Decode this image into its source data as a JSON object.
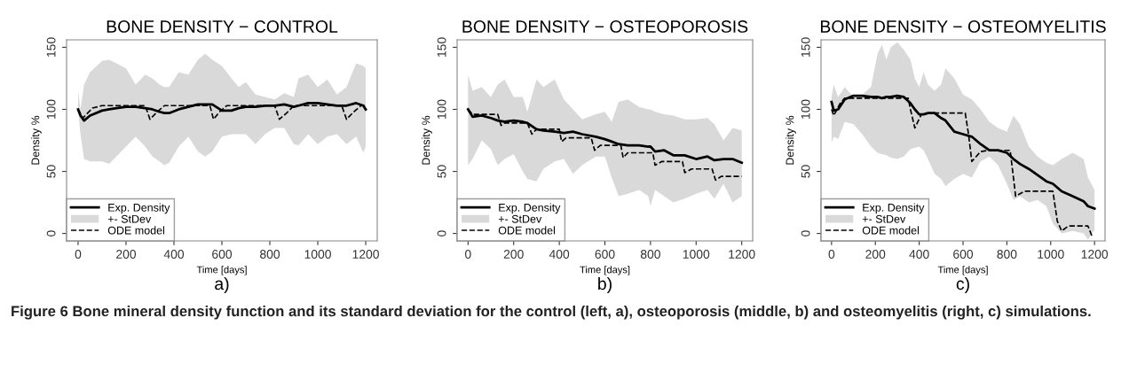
{
  "chart_data": [
    {
      "type": "line",
      "title": "BONE DENSITY − CONTROL",
      "xlabel": "Time [days]",
      "ylabel": "Density %",
      "xlim": [
        -48,
        1248
      ],
      "ylim": [
        -6,
        156
      ],
      "xticks": [
        0,
        200,
        400,
        600,
        800,
        1000,
        1200
      ],
      "yticks": [
        0,
        50,
        100,
        150
      ],
      "grid": false,
      "legend": "bottom left",
      "annotations": [
        "a)",
        "Figure 6 Bone mineral density function and its standard deviation for the control (left, a), osteoporosis (middle, b) and osteomyelitis (right, c) simulations."
      ],
      "series": [
        {
          "name": "Exp. Density",
          "line_style": "solid",
          "color": "#000000",
          "x": [
            0,
            10,
            25,
            50,
            100,
            130,
            160,
            200,
            240,
            280,
            310,
            340,
            360,
            380,
            420,
            460,
            500,
            530,
            560,
            600,
            640,
            670,
            700,
            740,
            780,
            820,
            860,
            900,
            920,
            960,
            1000,
            1040,
            1080,
            1120,
            1160,
            1190,
            1200
          ],
          "values": [
            100,
            95,
            91,
            95,
            99,
            100,
            101,
            102,
            102,
            101,
            100,
            98,
            97,
            97,
            100,
            102,
            104,
            104,
            104,
            99,
            99,
            101,
            102,
            102,
            103,
            103,
            104,
            102,
            103,
            105,
            105,
            104,
            103,
            103,
            105,
            103,
            100
          ],
          "upper": [
            115,
            100,
            120,
            130,
            139,
            140,
            137,
            133,
            120,
            128,
            125,
            120,
            118,
            118,
            130,
            128,
            140,
            145,
            140,
            135,
            125,
            118,
            122,
            112,
            110,
            108,
            113,
            110,
            125,
            128,
            118,
            124,
            112,
            118,
            137,
            135,
            133
          ],
          "lower": [
            100,
            80,
            60,
            58,
            58,
            56,
            62,
            70,
            78,
            70,
            62,
            58,
            55,
            57,
            70,
            78,
            66,
            62,
            66,
            78,
            80,
            80,
            80,
            72,
            80,
            85,
            85,
            72,
            71,
            80,
            72,
            78,
            80,
            72,
            78,
            65,
            70
          ]
        },
        {
          "name": "+- StDev",
          "type": "area",
          "color": "#d9d9d9"
        },
        {
          "name": "ODE model",
          "line_style": "dashed",
          "color": "#000000",
          "x": [
            0,
            20,
            60,
            100,
            280,
            300,
            330,
            360,
            550,
            565,
            590,
            620,
            820,
            840,
            870,
            900,
            1100,
            1120,
            1150,
            1180,
            1200
          ],
          "values": [
            100,
            93,
            101,
            103,
            103,
            92,
            98,
            103,
            103,
            92,
            98,
            103,
            103,
            92,
            97,
            103,
            103,
            92,
            98,
            103,
            103
          ]
        }
      ]
    },
    {
      "type": "line",
      "title": "BONE DENSITY − OSTEOPOROSIS",
      "xlabel": "Time [days]",
      "ylabel": "Density %",
      "xlim": [
        -48,
        1248
      ],
      "ylim": [
        -6,
        156
      ],
      "xticks": [
        0,
        200,
        400,
        600,
        800,
        1000,
        1200
      ],
      "yticks": [
        0,
        50,
        100,
        150
      ],
      "grid": false,
      "legend": "bottom left",
      "annotations": [
        "b)"
      ],
      "series": [
        {
          "name": "Exp. Density",
          "line_style": "solid",
          "color": "#000000",
          "x": [
            0,
            20,
            60,
            100,
            130,
            160,
            200,
            240,
            260,
            300,
            330,
            380,
            420,
            460,
            500,
            560,
            600,
            630,
            660,
            700,
            750,
            790,
            800,
            820,
            860,
            900,
            950,
            1000,
            1050,
            1080,
            1120,
            1160,
            1200
          ],
          "values": [
            100,
            94,
            95,
            93,
            91,
            90,
            91,
            90,
            89,
            84,
            83,
            82,
            81,
            82,
            80,
            78,
            76,
            74,
            72,
            71,
            71,
            70,
            70,
            66,
            67,
            63,
            63,
            60,
            62,
            59,
            60,
            60,
            57
          ],
          "upper": [
            128,
            115,
            118,
            110,
            120,
            124,
            110,
            110,
            98,
            124,
            118,
            124,
            108,
            100,
            92,
            96,
            98,
            90,
            106,
            108,
            102,
            100,
            100,
            98,
            96,
            95,
            92,
            92,
            93,
            88,
            75,
            85,
            83
          ],
          "lower": [
            55,
            60,
            75,
            68,
            55,
            60,
            64,
            50,
            44,
            42,
            52,
            58,
            60,
            48,
            55,
            62,
            62,
            45,
            30,
            32,
            35,
            30,
            22,
            35,
            30,
            25,
            28,
            32,
            35,
            28,
            40,
            25,
            30
          ]
        },
        {
          "name": "+- StDev",
          "type": "area",
          "color": "#d9d9d9"
        },
        {
          "name": "ODE model",
          "line_style": "dashed",
          "color": "#000000",
          "x": [
            0,
            20,
            130,
            145,
            160,
            260,
            280,
            300,
            400,
            410,
            430,
            540,
            555,
            580,
            670,
            680,
            700,
            810,
            820,
            850,
            940,
            950,
            980,
            1070,
            1085,
            1110,
            1200
          ],
          "values": [
            100,
            96,
            96,
            87,
            89,
            89,
            80,
            84,
            84,
            74,
            77,
            77,
            67,
            71,
            71,
            61,
            65,
            65,
            55,
            58,
            58,
            49,
            52,
            52,
            43,
            46,
            46
          ]
        }
      ]
    },
    {
      "type": "line",
      "title": "BONE DENSITY − OSTEOMYELITIS",
      "xlabel": "Time [days]",
      "ylabel": "Density %",
      "xlim": [
        -48,
        1248
      ],
      "ylim": [
        -6,
        156
      ],
      "xticks": [
        0,
        200,
        400,
        600,
        800,
        1000,
        1200
      ],
      "yticks": [
        0,
        50,
        100,
        150
      ],
      "grid": false,
      "legend": "bottom left",
      "annotations": [
        "c)"
      ],
      "series": [
        {
          "name": "Exp. Density",
          "line_style": "solid",
          "color": "#000000",
          "x": [
            0,
            10,
            30,
            60,
            100,
            140,
            180,
            210,
            230,
            250,
            270,
            300,
            330,
            360,
            380,
            400,
            420,
            440,
            470,
            500,
            520,
            560,
            600,
            640,
            680,
            720,
            760,
            800,
            830,
            860,
            900,
            940,
            980,
            1010,
            1050,
            1100,
            1150,
            1170,
            1200
          ],
          "values": [
            106,
            99,
            100,
            108,
            111,
            111,
            110,
            110,
            109,
            110,
            110,
            111,
            110,
            105,
            100,
            96,
            96,
            97,
            97,
            93,
            91,
            82,
            80,
            78,
            72,
            67,
            67,
            65,
            60,
            56,
            52,
            47,
            42,
            40,
            34,
            30,
            26,
            22,
            20
          ],
          "upper": [
            110,
            120,
            110,
            118,
            110,
            112,
            118,
            145,
            152,
            140,
            150,
            154,
            148,
            140,
            125,
            118,
            130,
            120,
            115,
            120,
            133,
            125,
            112,
            108,
            100,
            90,
            85,
            82,
            95,
            88,
            70,
            62,
            57,
            55,
            60,
            65,
            60,
            45,
            35
          ],
          "lower": [
            73,
            78,
            76,
            90,
            88,
            80,
            70,
            65,
            64,
            63,
            61,
            60,
            62,
            68,
            69,
            70,
            67,
            60,
            48,
            44,
            38,
            44,
            48,
            45,
            58,
            62,
            55,
            40,
            27,
            30,
            25,
            27,
            22,
            8,
            0,
            2,
            0,
            -5,
            3
          ]
        },
        {
          "name": "+- StDev",
          "type": "area",
          "color": "#d9d9d9"
        },
        {
          "name": "ODE model",
          "line_style": "dashed",
          "color": "#000000",
          "x": [
            0,
            10,
            40,
            60,
            350,
            360,
            380,
            410,
            450,
            610,
            625,
            640,
            680,
            720,
            815,
            830,
            840,
            880,
            1010,
            1030,
            1050,
            1080,
            1170,
            1190
          ],
          "values": [
            100,
            95,
            105,
            109,
            109,
            100,
            85,
            96,
            97,
            97,
            80,
            58,
            66,
            67,
            67,
            45,
            30,
            34,
            34,
            10,
            2,
            6,
            6,
            -3
          ]
        }
      ]
    }
  ]
}
